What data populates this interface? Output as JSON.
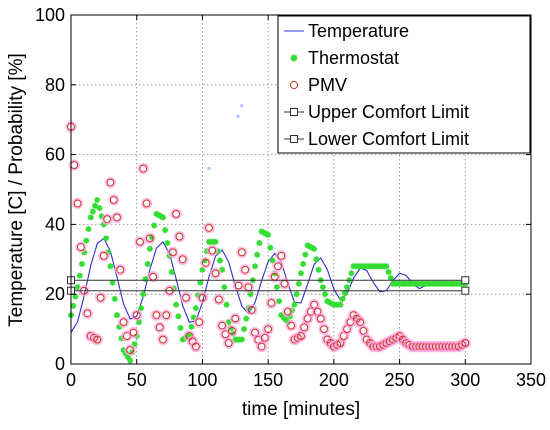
{
  "chart_data": {
    "type": "line",
    "title": "",
    "xlabel": "time [minutes]",
    "ylabel": "Temperature [C]  /  Probability [%]",
    "xlim": [
      0,
      350
    ],
    "ylim": [
      0,
      100
    ],
    "xticks": [
      0,
      50,
      100,
      150,
      200,
      250,
      300,
      350
    ],
    "yticks": [
      0,
      20,
      40,
      60,
      80,
      100
    ],
    "grid": true,
    "legend_position": "top-right",
    "series": [
      {
        "name": "Temperature",
        "color": "#2f2fd0",
        "style": "line",
        "x": [
          0,
          5,
          10,
          15,
          20,
          25,
          30,
          35,
          40,
          45,
          50,
          55,
          60,
          65,
          70,
          75,
          80,
          85,
          90,
          95,
          100,
          105,
          110,
          115,
          120,
          125,
          130,
          135,
          140,
          145,
          150,
          155,
          160,
          165,
          170,
          175,
          180,
          185,
          190,
          195,
          200,
          205,
          210,
          215,
          220,
          225,
          230,
          235,
          240,
          245,
          250,
          255,
          260,
          265,
          270,
          275,
          280,
          285,
          290,
          295,
          300
        ],
        "y": [
          9.0,
          12.1,
          19.5,
          28.2,
          34.5,
          36.0,
          32.3,
          24.9,
          17.2,
          12.9,
          13.7,
          19.4,
          27.0,
          33.2,
          35.0,
          31.6,
          24.4,
          16.7,
          12.0,
          12.3,
          17.6,
          25.0,
          30.9,
          32.7,
          29.2,
          22.4,
          16.6,
          14.4,
          17.6,
          23.8,
          29.3,
          31.7,
          29.2,
          23.1,
          17.7,
          17.5,
          22.8,
          28.6,
          30.4,
          27.1,
          21.5,
          18.3,
          20.2,
          24.6,
          27.5,
          26.8,
          23.4,
          20.7,
          21.0,
          23.9,
          26.0,
          25.4,
          23.0,
          21.6,
          22.5,
          23.6,
          23.6,
          22.9,
          22.7,
          23.2,
          23.3
        ]
      },
      {
        "name": "Thermostat",
        "color": "#33dd33",
        "style": "markers-star",
        "x": [
          0,
          5,
          10,
          15,
          20,
          25,
          30,
          35,
          40,
          45,
          50,
          55,
          60,
          65,
          70,
          75,
          80,
          85,
          90,
          95,
          100,
          105,
          110,
          115,
          120,
          125,
          130,
          135,
          140,
          145,
          150,
          155,
          160,
          165,
          170,
          175,
          180,
          185,
          190,
          195,
          200,
          205,
          210,
          215,
          220,
          225,
          230,
          235,
          240,
          245,
          250,
          255,
          260,
          265,
          270,
          275,
          280,
          285,
          290,
          295,
          300
        ],
        "y": [
          14,
          22,
          32,
          42,
          47,
          40,
          28,
          14,
          4,
          1,
          8,
          20,
          33,
          43,
          42,
          31,
          17,
          7,
          8,
          16,
          27,
          35,
          35,
          27,
          12,
          7,
          7,
          16,
          28,
          38,
          37,
          26,
          14,
          12,
          17,
          26,
          34,
          33,
          24,
          18,
          17,
          17,
          22,
          28,
          28,
          28,
          28,
          28,
          28,
          23,
          23,
          23,
          23,
          23,
          23,
          23,
          23,
          23,
          23,
          23,
          23
        ]
      },
      {
        "name": "PMV",
        "color": "#cc3322",
        "halo_color": "#ffa8e6",
        "style": "markers-circle",
        "x": [
          0,
          5,
          10,
          15,
          20,
          25,
          30,
          35,
          40,
          45,
          50,
          55,
          60,
          65,
          70,
          75,
          80,
          85,
          90,
          95,
          100,
          105,
          110,
          115,
          120,
          125,
          130,
          135,
          140,
          145,
          150,
          155,
          160,
          165,
          170,
          175,
          180,
          185,
          190,
          195,
          200,
          205,
          210,
          215,
          220,
          225,
          230,
          235,
          240,
          245,
          250,
          255,
          260,
          265,
          270,
          275,
          280,
          285,
          290,
          295,
          300
        ],
        "y": [
          68,
          46,
          21,
          8,
          7,
          31,
          52,
          42,
          12,
          4,
          14,
          56,
          36,
          14,
          7,
          21,
          43,
          30,
          8,
          5,
          19,
          39,
          26,
          11,
          6,
          13,
          32,
          22,
          9,
          5,
          10,
          25,
          31,
          15,
          7,
          8,
          13,
          17,
          13,
          7,
          5,
          6,
          10,
          14,
          12,
          7,
          5,
          5,
          6,
          7,
          8,
          6,
          5,
          5,
          5,
          5,
          5,
          5,
          5,
          5,
          6
        ]
      },
      {
        "name": "Upper Comfort Limit",
        "color": "#333333",
        "style": "line-square-ends",
        "x": [
          0,
          300
        ],
        "y": [
          24,
          24
        ]
      },
      {
        "name": "Lower Comfort Limit",
        "color": "#333333",
        "style": "line-square-ends",
        "x": [
          0,
          300
        ],
        "y": [
          21,
          21
        ]
      }
    ],
    "stray_markers": [
      {
        "x": 130,
        "y": 74
      },
      {
        "x": 127,
        "y": 71
      },
      {
        "x": 105,
        "y": 56
      }
    ]
  }
}
